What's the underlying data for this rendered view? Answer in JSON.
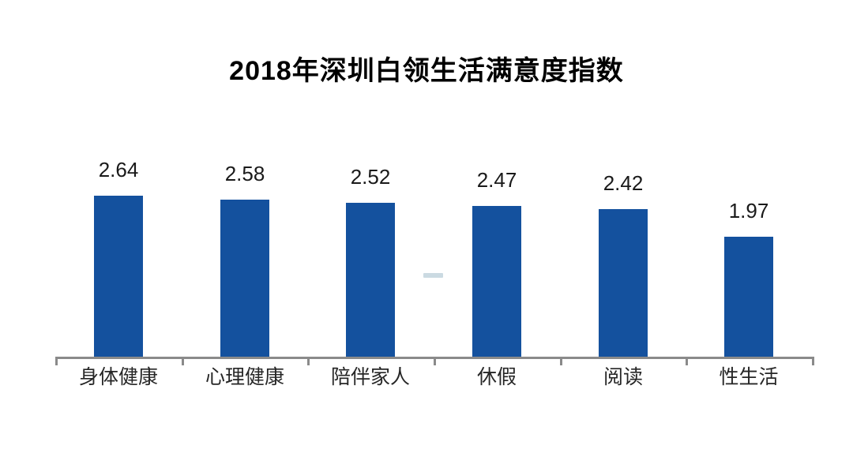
{
  "chart_data": {
    "type": "bar",
    "title": "2018年深圳白领生活满意度指数",
    "categories": [
      "身体健康",
      "心理健康",
      "陪伴家人",
      "休假",
      "阅读",
      "性生活"
    ],
    "values": [
      2.64,
      2.58,
      2.52,
      2.47,
      2.42,
      1.97
    ],
    "value_labels": [
      "2.64",
      "2.58",
      "2.52",
      "2.47",
      "2.42",
      "1.97"
    ],
    "xlabel": "",
    "ylabel": "",
    "ylim": [
      0,
      2.93
    ],
    "grid": false,
    "legend": "none",
    "colors": {
      "bar": "#14519E",
      "axis": "#8A8A8A",
      "title_text": "#000000",
      "value_text": "#1A1A1A",
      "category_text": "#262626",
      "watermark": "#B9CDD8",
      "background": "#FFFFFF"
    }
  }
}
